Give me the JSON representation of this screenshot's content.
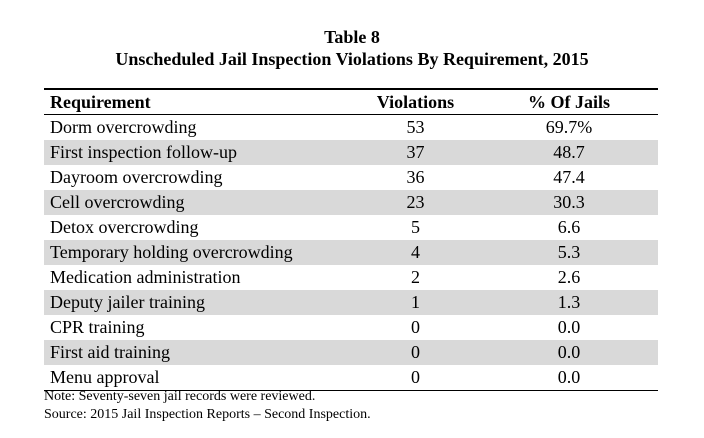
{
  "title": {
    "line1": "Table 8",
    "line2": "Unscheduled Jail Inspection Violations By Requirement, 2015"
  },
  "table": {
    "columns": [
      "Requirement",
      "Violations",
      "% Of Jails"
    ],
    "rows": [
      {
        "requirement": "Dorm overcrowding",
        "violations": "53",
        "percent": "69.7%"
      },
      {
        "requirement": "First inspection follow-up",
        "violations": "37",
        "percent": "48.7"
      },
      {
        "requirement": "Dayroom overcrowding",
        "violations": "36",
        "percent": "47.4"
      },
      {
        "requirement": "Cell overcrowding",
        "violations": "23",
        "percent": "30.3"
      },
      {
        "requirement": "Detox overcrowding",
        "violations": "5",
        "percent": "6.6"
      },
      {
        "requirement": "Temporary holding overcrowding",
        "violations": "4",
        "percent": "5.3"
      },
      {
        "requirement": "Medication administration",
        "violations": "2",
        "percent": "2.6"
      },
      {
        "requirement": "Deputy jailer training",
        "violations": "1",
        "percent": "1.3"
      },
      {
        "requirement": "CPR training",
        "violations": "0",
        "percent": "0.0"
      },
      {
        "requirement": "First aid training",
        "violations": "0",
        "percent": "0.0"
      },
      {
        "requirement": "Menu approval",
        "violations": "0",
        "percent": "0.0"
      }
    ]
  },
  "notes": {
    "note": "Note: Seventy-seven jail records were reviewed.",
    "source": "Source: 2015 Jail Inspection Reports – Second Inspection."
  }
}
